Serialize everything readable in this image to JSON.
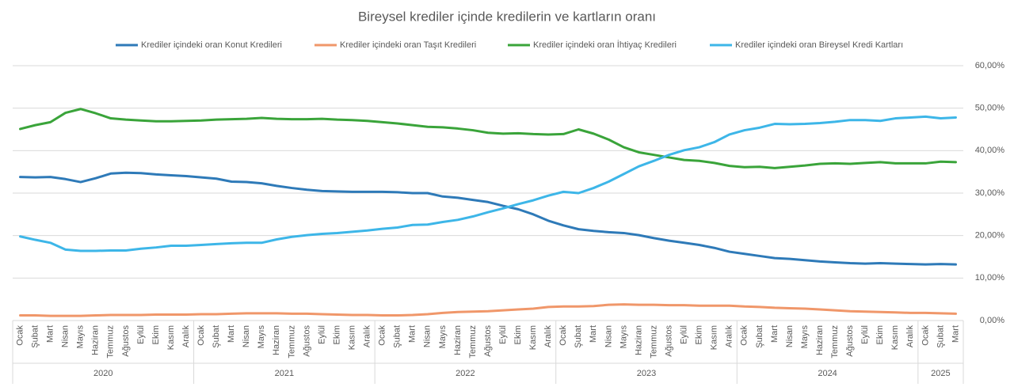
{
  "chart_data": {
    "type": "line",
    "title": "Bireysel krediler içinde kredilerin ve kartların oranı",
    "categories": [
      "Ocak",
      "Şubat",
      "Mart",
      "Nisan",
      "Mayıs",
      "Haziran",
      "Temmuz",
      "Ağustos",
      "Eylül",
      "Ekim",
      "Kasım",
      "Aralık",
      "Ocak",
      "Şubat",
      "Mart",
      "Nisan",
      "Mayıs",
      "Haziran",
      "Temmuz",
      "Ağustos",
      "Eylül",
      "Ekim",
      "Kasım",
      "Aralık",
      "Ocak",
      "Şubat",
      "Mart",
      "Nisan",
      "Mayıs",
      "Haziran",
      "Temmuz",
      "Ağustos",
      "Eylül",
      "Ekim",
      "Kasım",
      "Aralık",
      "Ocak",
      "Şubat",
      "Mart",
      "Nisan",
      "Mayıs",
      "Haziran",
      "Temmuz",
      "Ağustos",
      "Eylül",
      "Ekim",
      "Kasım",
      "Aralık",
      "Ocak",
      "Şubat",
      "Mart",
      "Nisan",
      "Mayıs",
      "Haziran",
      "Temmuz",
      "Ağustos",
      "Eylül",
      "Ekim",
      "Kasım",
      "Aralık",
      "Ocak",
      "Şubat",
      "Mart"
    ],
    "years": [
      "2020",
      "2021",
      "2022",
      "2023",
      "2024",
      "2025"
    ],
    "series": [
      {
        "name": "Krediler içindeki oran Konut Kredileri",
        "color": "#2e7ab8",
        "values": [
          33.8,
          33.7,
          33.8,
          33.3,
          32.6,
          33.5,
          34.6,
          34.8,
          34.7,
          34.4,
          34.2,
          34.0,
          33.7,
          33.4,
          32.7,
          32.6,
          32.3,
          31.7,
          31.2,
          30.8,
          30.5,
          30.4,
          30.3,
          30.3,
          30.3,
          30.2,
          30.0,
          30.0,
          29.2,
          28.9,
          28.4,
          27.9,
          27.0,
          26.2,
          25.0,
          23.5,
          22.4,
          21.5,
          21.1,
          20.8,
          20.6,
          20.1,
          19.4,
          18.8,
          18.3,
          17.8,
          17.1,
          16.2,
          15.7,
          15.2,
          14.7,
          14.5,
          14.2,
          13.9,
          13.7,
          13.5,
          13.4,
          13.5,
          13.4,
          13.3,
          13.2,
          13.3,
          13.2
        ]
      },
      {
        "name": "Krediler içindeki oran Taşıt Kredileri",
        "color": "#f0976a",
        "values": [
          1.2,
          1.2,
          1.1,
          1.1,
          1.1,
          1.2,
          1.3,
          1.3,
          1.3,
          1.4,
          1.4,
          1.4,
          1.5,
          1.5,
          1.6,
          1.7,
          1.7,
          1.7,
          1.6,
          1.6,
          1.5,
          1.4,
          1.3,
          1.3,
          1.2,
          1.2,
          1.3,
          1.5,
          1.8,
          2.0,
          2.1,
          2.2,
          2.4,
          2.6,
          2.8,
          3.2,
          3.3,
          3.3,
          3.4,
          3.7,
          3.8,
          3.7,
          3.7,
          3.6,
          3.6,
          3.5,
          3.5,
          3.5,
          3.3,
          3.2,
          3.0,
          2.9,
          2.8,
          2.6,
          2.4,
          2.2,
          2.1,
          2.0,
          1.9,
          1.8,
          1.8,
          1.7,
          1.6
        ]
      },
      {
        "name": "Krediler içindeki oran İhtiyaç Kredileri",
        "color": "#3aa43a",
        "values": [
          45.1,
          46.0,
          46.7,
          48.9,
          49.8,
          48.8,
          47.6,
          47.3,
          47.1,
          46.9,
          46.9,
          47.0,
          47.1,
          47.3,
          47.4,
          47.5,
          47.7,
          47.5,
          47.4,
          47.4,
          47.5,
          47.3,
          47.2,
          47.0,
          46.7,
          46.4,
          46.0,
          45.6,
          45.5,
          45.2,
          44.8,
          44.2,
          44.0,
          44.1,
          43.9,
          43.8,
          43.9,
          45.0,
          44.0,
          42.6,
          40.8,
          39.6,
          39.0,
          38.4,
          37.8,
          37.6,
          37.1,
          36.4,
          36.1,
          36.2,
          35.9,
          36.2,
          36.5,
          36.9,
          37.0,
          36.9,
          37.1,
          37.3,
          37.0,
          37.0,
          37.0,
          37.4,
          37.3
        ]
      },
      {
        "name": "Krediler içindeki oran Bireysel Kredi Kartları",
        "color": "#3db6e8",
        "values": [
          19.8,
          19.0,
          18.3,
          16.7,
          16.4,
          16.4,
          16.5,
          16.5,
          16.9,
          17.2,
          17.6,
          17.6,
          17.8,
          18.0,
          18.2,
          18.3,
          18.3,
          19.1,
          19.7,
          20.1,
          20.4,
          20.6,
          20.9,
          21.2,
          21.6,
          21.9,
          22.5,
          22.6,
          23.2,
          23.7,
          24.5,
          25.5,
          26.4,
          27.4,
          28.3,
          29.4,
          30.3,
          30.0,
          31.2,
          32.7,
          34.5,
          36.3,
          37.6,
          39.0,
          40.1,
          40.8,
          42.0,
          43.8,
          44.8,
          45.4,
          46.3,
          46.2,
          46.3,
          46.5,
          46.8,
          47.2,
          47.2,
          47.0,
          47.6,
          47.8,
          48.0,
          47.6,
          47.8
        ]
      }
    ],
    "ylim": [
      0,
      60
    ],
    "yticks": [
      {
        "value": 0,
        "label": "0,00%"
      },
      {
        "value": 10,
        "label": "10,00%"
      },
      {
        "value": 20,
        "label": "20,00%"
      },
      {
        "value": 30,
        "label": "30,00%"
      },
      {
        "value": 40,
        "label": "40,00%"
      },
      {
        "value": 50,
        "label": "50,00%"
      },
      {
        "value": 60,
        "label": "60,00%"
      }
    ],
    "grid": true,
    "legend": "top"
  }
}
